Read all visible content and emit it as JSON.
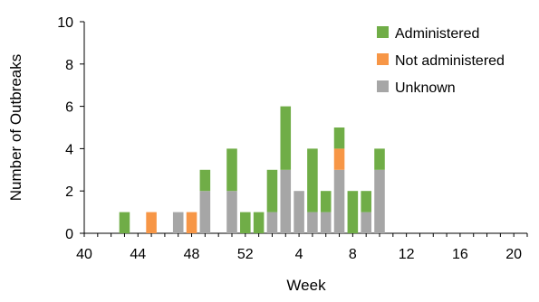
{
  "chart_data": {
    "type": "bar",
    "stacked": true,
    "xlabel": "Week",
    "ylabel": "Number of Outbreaks",
    "ylim": [
      0,
      10
    ],
    "yticks": [
      0,
      2,
      4,
      6,
      8,
      10
    ],
    "grid": false,
    "legend_position": "top-right",
    "x_tick_labels": [
      "40",
      "44",
      "48",
      "52",
      "4",
      "8",
      "12",
      "16",
      "20"
    ],
    "categories": [
      "40",
      "41",
      "42",
      "43",
      "44",
      "45",
      "46",
      "47",
      "48",
      "49",
      "50",
      "51",
      "52",
      "53",
      "1",
      "2",
      "3",
      "4",
      "5",
      "6",
      "7",
      "8",
      "9",
      "10",
      "11",
      "12",
      "13",
      "14",
      "15",
      "16",
      "17",
      "18",
      "19",
      "20"
    ],
    "series": [
      {
        "name": "Unknown",
        "color": "#a6a6a6",
        "values": [
          0,
          0,
          0,
          0,
          0,
          0,
          0,
          1,
          0,
          2,
          0,
          2,
          0,
          0,
          1,
          3,
          2,
          1,
          1,
          3,
          0,
          1,
          3,
          0,
          0,
          0,
          0,
          0,
          0,
          0,
          0,
          0,
          0,
          0
        ]
      },
      {
        "name": "Not administered",
        "color": "#f79646",
        "values": [
          0,
          0,
          0,
          0,
          0,
          1,
          0,
          0,
          1,
          0,
          0,
          0,
          0,
          0,
          0,
          0,
          0,
          0,
          0,
          1,
          0,
          0,
          0,
          0,
          0,
          0,
          0,
          0,
          0,
          0,
          0,
          0,
          0,
          0
        ]
      },
      {
        "name": "Administered",
        "color": "#70ad47",
        "values": [
          0,
          0,
          0,
          1,
          0,
          0,
          0,
          0,
          0,
          1,
          0,
          2,
          1,
          1,
          2,
          3,
          0,
          3,
          1,
          1,
          2,
          1,
          1,
          0,
          0,
          0,
          0,
          0,
          0,
          0,
          0,
          0,
          0,
          0
        ]
      }
    ],
    "legend_order": [
      "Administered",
      "Not administered",
      "Unknown"
    ]
  }
}
